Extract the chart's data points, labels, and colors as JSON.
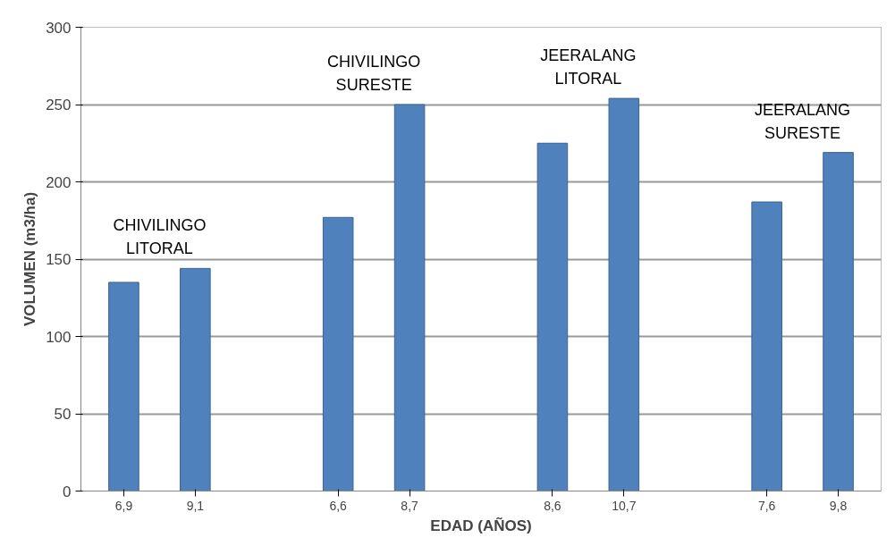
{
  "chart_data": {
    "type": "bar",
    "categories": [
      "6,9",
      "9,1",
      null,
      "6,6",
      "8,7",
      null,
      "8,6",
      "10,7",
      null,
      "7,6",
      "9,8"
    ],
    "values": [
      135,
      144,
      null,
      177,
      250,
      null,
      225,
      254,
      null,
      187,
      219
    ],
    "color": "#4f81bd",
    "xlabel": "EDAD (AÑOS)",
    "ylabel": "VOLUMEN (m3/ha)",
    "ylim": [
      0,
      300
    ],
    "yticks": [
      0,
      50,
      100,
      150,
      200,
      250,
      300
    ],
    "grid": "y",
    "annotations": [
      "CHIVILINGO\nLITORAL",
      "CHIVILINGO\nSURESTE",
      "JEERALANG\nLITORAL",
      "JEERALANG\nSURESTE"
    ]
  }
}
